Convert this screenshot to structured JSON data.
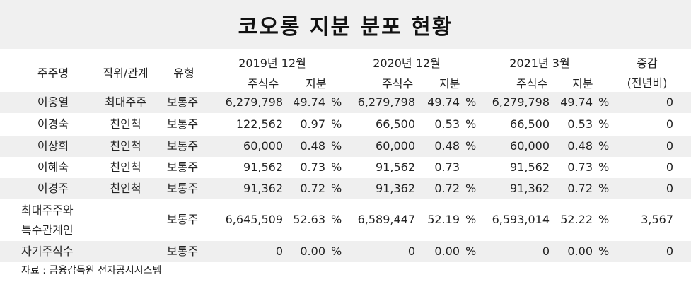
{
  "title": "코오롱 지분 분포 현황",
  "headers": {
    "shareholder": "주주명",
    "position": "직위/관계",
    "type": "유형",
    "periods": [
      "2019년 12월",
      "2020년 12월",
      "2021년 3월"
    ],
    "shares": "주식수",
    "stake": "지분",
    "change_line1": "증감",
    "change_line2": "(전년비)"
  },
  "rows": [
    {
      "name": "이웅열",
      "relation": "최대주주",
      "type": "보통주",
      "s2019": "6,279,798",
      "p2019": "49.74",
      "u2019": "%",
      "s2020": "6,279,798",
      "p2020": "49.74",
      "u2020": "%",
      "s2021": "6,279,798",
      "p2021": "49.74",
      "u2021": "%",
      "change": "0"
    },
    {
      "name": "이경숙",
      "relation": "친인척",
      "type": "보통주",
      "s2019": "122,562",
      "p2019": "0.97",
      "u2019": "%",
      "s2020": "66,500",
      "p2020": "0.53",
      "u2020": "%",
      "s2021": "66,500",
      "p2021": "0.53",
      "u2021": "%",
      "change": "0"
    },
    {
      "name": "이상희",
      "relation": "친인척",
      "type": "보통주",
      "s2019": "60,000",
      "p2019": "0.48",
      "u2019": "%",
      "s2020": "60,000",
      "p2020": "0.48",
      "u2020": "%",
      "s2021": "60,000",
      "p2021": "0.48",
      "u2021": "%",
      "change": "0"
    },
    {
      "name": "이혜숙",
      "relation": "친인척",
      "type": "보통주",
      "s2019": "91,562",
      "p2019": "0.73",
      "u2019": "%",
      "s2020": "91,562",
      "p2020": "0.73",
      "u2020": "",
      "s2021": "91,562",
      "p2021": "0.73",
      "u2021": "%",
      "change": "0"
    },
    {
      "name": "이경주",
      "relation": "친인척",
      "type": "보통주",
      "s2019": "91,362",
      "p2019": "0.72",
      "u2019": "%",
      "s2020": "91,362",
      "p2020": "0.72",
      "u2020": "%",
      "s2021": "91,362",
      "p2021": "0.72",
      "u2021": "%",
      "change": "0"
    }
  ],
  "total_row": {
    "name_line1": "최대주주와",
    "name_line2": "특수관계인",
    "type": "보통주",
    "s2019": "6,645,509",
    "p2019": "52.63",
    "u2019": "%",
    "s2020": "6,589,447",
    "p2020": "52.19",
    "u2020": "%",
    "s2021": "6,593,014",
    "p2021": "52.22",
    "u2021": "%",
    "change": "3,567"
  },
  "treasury_row": {
    "name": "자기주식수",
    "type": "보통주",
    "s2019": "0",
    "p2019": "0.00",
    "u2019": "%",
    "s2020": "0",
    "p2020": "0.00",
    "u2020": "%",
    "s2021": "0",
    "p2021": "0.00",
    "u2021": "%",
    "change": "0"
  },
  "source": "자료 : 금융감독원 전자공시시스템"
}
